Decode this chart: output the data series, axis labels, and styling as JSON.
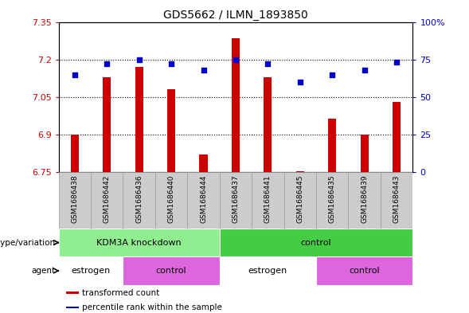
{
  "title": "GDS5662 / ILMN_1893850",
  "samples": [
    "GSM1686438",
    "GSM1686442",
    "GSM1686436",
    "GSM1686440",
    "GSM1686444",
    "GSM1686437",
    "GSM1686441",
    "GSM1686445",
    "GSM1686435",
    "GSM1686439",
    "GSM1686443"
  ],
  "transformed_count": [
    6.9,
    7.13,
    7.17,
    7.08,
    6.82,
    7.285,
    7.13,
    6.755,
    6.965,
    6.9,
    7.03
  ],
  "percentile_rank": [
    65,
    72,
    75,
    72,
    68,
    75,
    72,
    60,
    65,
    68,
    73
  ],
  "bar_baseline": 6.75,
  "ylim_left": [
    6.75,
    7.35
  ],
  "ylim_right": [
    0,
    100
  ],
  "yticks_left": [
    6.75,
    6.9,
    7.05,
    7.2,
    7.35
  ],
  "yticks_right": [
    0,
    25,
    50,
    75,
    100
  ],
  "ytick_labels_left": [
    "6.75",
    "6.9",
    "7.05",
    "7.2",
    "7.35"
  ],
  "ytick_labels_right": [
    "0",
    "25",
    "50",
    "75",
    "100%"
  ],
  "hlines": [
    6.9,
    7.05,
    7.2
  ],
  "bar_color": "#cc0000",
  "dot_color": "#0000cc",
  "dot_size": 18,
  "bar_width": 0.25,
  "genotype_groups": [
    {
      "label": "KDM3A knockdown",
      "start": 0,
      "end": 5,
      "color": "#90ee90"
    },
    {
      "label": "control",
      "start": 5,
      "end": 11,
      "color": "#44cc44"
    }
  ],
  "agent_groups": [
    {
      "label": "estrogen",
      "start": 0,
      "end": 2,
      "color": "#ffffff"
    },
    {
      "label": "control",
      "start": 2,
      "end": 5,
      "color": "#dd66dd"
    },
    {
      "label": "estrogen",
      "start": 5,
      "end": 8,
      "color": "#ffffff"
    },
    {
      "label": "control",
      "start": 8,
      "end": 11,
      "color": "#dd66dd"
    }
  ],
  "legend_items": [
    {
      "label": "transformed count",
      "color": "#cc0000"
    },
    {
      "label": "percentile rank within the sample",
      "color": "#0000cc"
    }
  ],
  "tick_label_color_left": "#cc0000",
  "tick_label_color_right": "#0000cc",
  "sample_box_color": "#cccccc",
  "sample_box_edge": "#999999"
}
